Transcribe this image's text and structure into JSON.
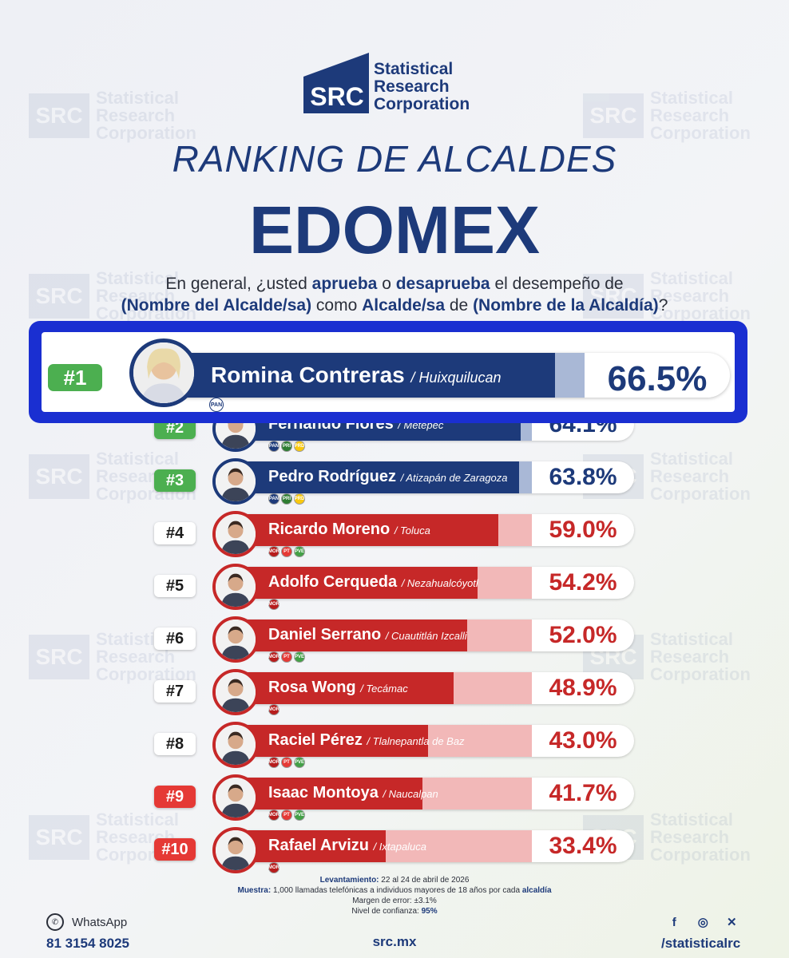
{
  "brand": {
    "logo_abbr": "SRC",
    "logo_name_line1": "Statistical",
    "logo_name_line2": "Research",
    "logo_name_line3": "Corporation"
  },
  "header": {
    "title": "RANKING DE ALCALDES",
    "subtitle": "EDOMEX"
  },
  "question": {
    "p1": "En general, ¿usted ",
    "b1": "aprueba",
    "p2": " o ",
    "b2": "desaprueba",
    "p3": " el desempeño de",
    "b3": "(Nombre del Alcalde/sa)",
    "p4": " como ",
    "b4": "Alcalde/sa",
    "p5": " de ",
    "b5": "(Nombre de la Alcaldía)",
    "p6": "?"
  },
  "colors": {
    "navy": "#1d3a7a",
    "navy_track": "#a9b8d6",
    "red": "#c62828",
    "red_track": "#f2b8b8",
    "green_rank": "#4caf50",
    "red_rank": "#e53935",
    "highlight_border": "#1a2fd1"
  },
  "chart_data": {
    "type": "bar",
    "title": "RANKING DE ALCALDES",
    "subtitle": "EDOMEX",
    "xlim": [
      0,
      100
    ],
    "entries": [
      {
        "rank": "#1",
        "name": "Romina Contreras",
        "municipality": "/ Huixquilucan",
        "value": 66.5,
        "label": "66.5%",
        "color": "navy",
        "rank_style": "green",
        "parties": [
          "PAN"
        ]
      },
      {
        "rank": "#2",
        "name": "Fernando Flores",
        "municipality": "/ Metepec",
        "value": 64.1,
        "label": "64.1%",
        "color": "navy",
        "rank_style": "green",
        "parties": [
          "PAN",
          "PRI",
          "PRD"
        ]
      },
      {
        "rank": "#3",
        "name": "Pedro Rodríguez",
        "municipality": "/ Atizapán de Zaragoza",
        "value": 63.8,
        "label": "63.8%",
        "color": "navy",
        "rank_style": "green",
        "parties": [
          "PAN",
          "PRI",
          "PRD"
        ]
      },
      {
        "rank": "#4",
        "name": "Ricardo Moreno",
        "municipality": "/ Toluca",
        "value": 59.0,
        "label": "59.0%",
        "color": "red",
        "rank_style": "white",
        "parties": [
          "MORENA",
          "PT",
          "PVEM"
        ]
      },
      {
        "rank": "#5",
        "name": "Adolfo Cerqueda",
        "municipality": "/ Nezahualcóyotl",
        "value": 54.2,
        "label": "54.2%",
        "color": "red",
        "rank_style": "white",
        "parties": [
          "MORENA"
        ]
      },
      {
        "rank": "#6",
        "name": "Daniel Serrano",
        "municipality": "/ Cuautitlán Izcalli",
        "value": 52.0,
        "label": "52.0%",
        "color": "red",
        "rank_style": "white",
        "parties": [
          "MORENA",
          "PT",
          "PVEM"
        ]
      },
      {
        "rank": "#7",
        "name": "Rosa Wong",
        "municipality": "/ Tecámac",
        "value": 48.9,
        "label": "48.9%",
        "color": "red",
        "rank_style": "white",
        "parties": [
          "MORENA"
        ]
      },
      {
        "rank": "#8",
        "name": "Raciel Pérez",
        "municipality": "/ Tlalnepantla de Baz",
        "value": 43.0,
        "label": "43.0%",
        "color": "red",
        "rank_style": "white",
        "parties": [
          "MORENA",
          "PT",
          "PVEM"
        ]
      },
      {
        "rank": "#9",
        "name": "Isaac Montoya",
        "municipality": "/ Naucalpan",
        "value": 41.7,
        "label": "41.7%",
        "color": "red",
        "rank_style": "red",
        "parties": [
          "MORENA",
          "PT",
          "PVEM"
        ]
      },
      {
        "rank": "#10",
        "name": "Rafael Arvizu",
        "municipality": "/ Ixtapaluca",
        "value": 33.4,
        "label": "33.4%",
        "color": "red",
        "rank_style": "red",
        "parties": [
          "MORENA"
        ]
      }
    ]
  },
  "methodology": {
    "line1_label": "Levantamiento:",
    "line1_value": " 22 al 24 de abril de 2026",
    "line2_label": "Muestra:",
    "line2_value": " 1,000 llamadas telefónicas a individuos mayores de 18 años por cada ",
    "line2_bold": "alcaldía",
    "line3_label": "Margen de error:",
    "line3_value": " ±3.1%",
    "line4_label": "Nivel de confianza:",
    "line4_value": " 95%"
  },
  "footer": {
    "whatsapp_label": "WhatsApp",
    "phone": "81 3154 8025",
    "site": "src.mx",
    "social_handle": "/statisticalrc",
    "social_icons": [
      "facebook-icon",
      "instagram-icon",
      "x-icon"
    ]
  }
}
